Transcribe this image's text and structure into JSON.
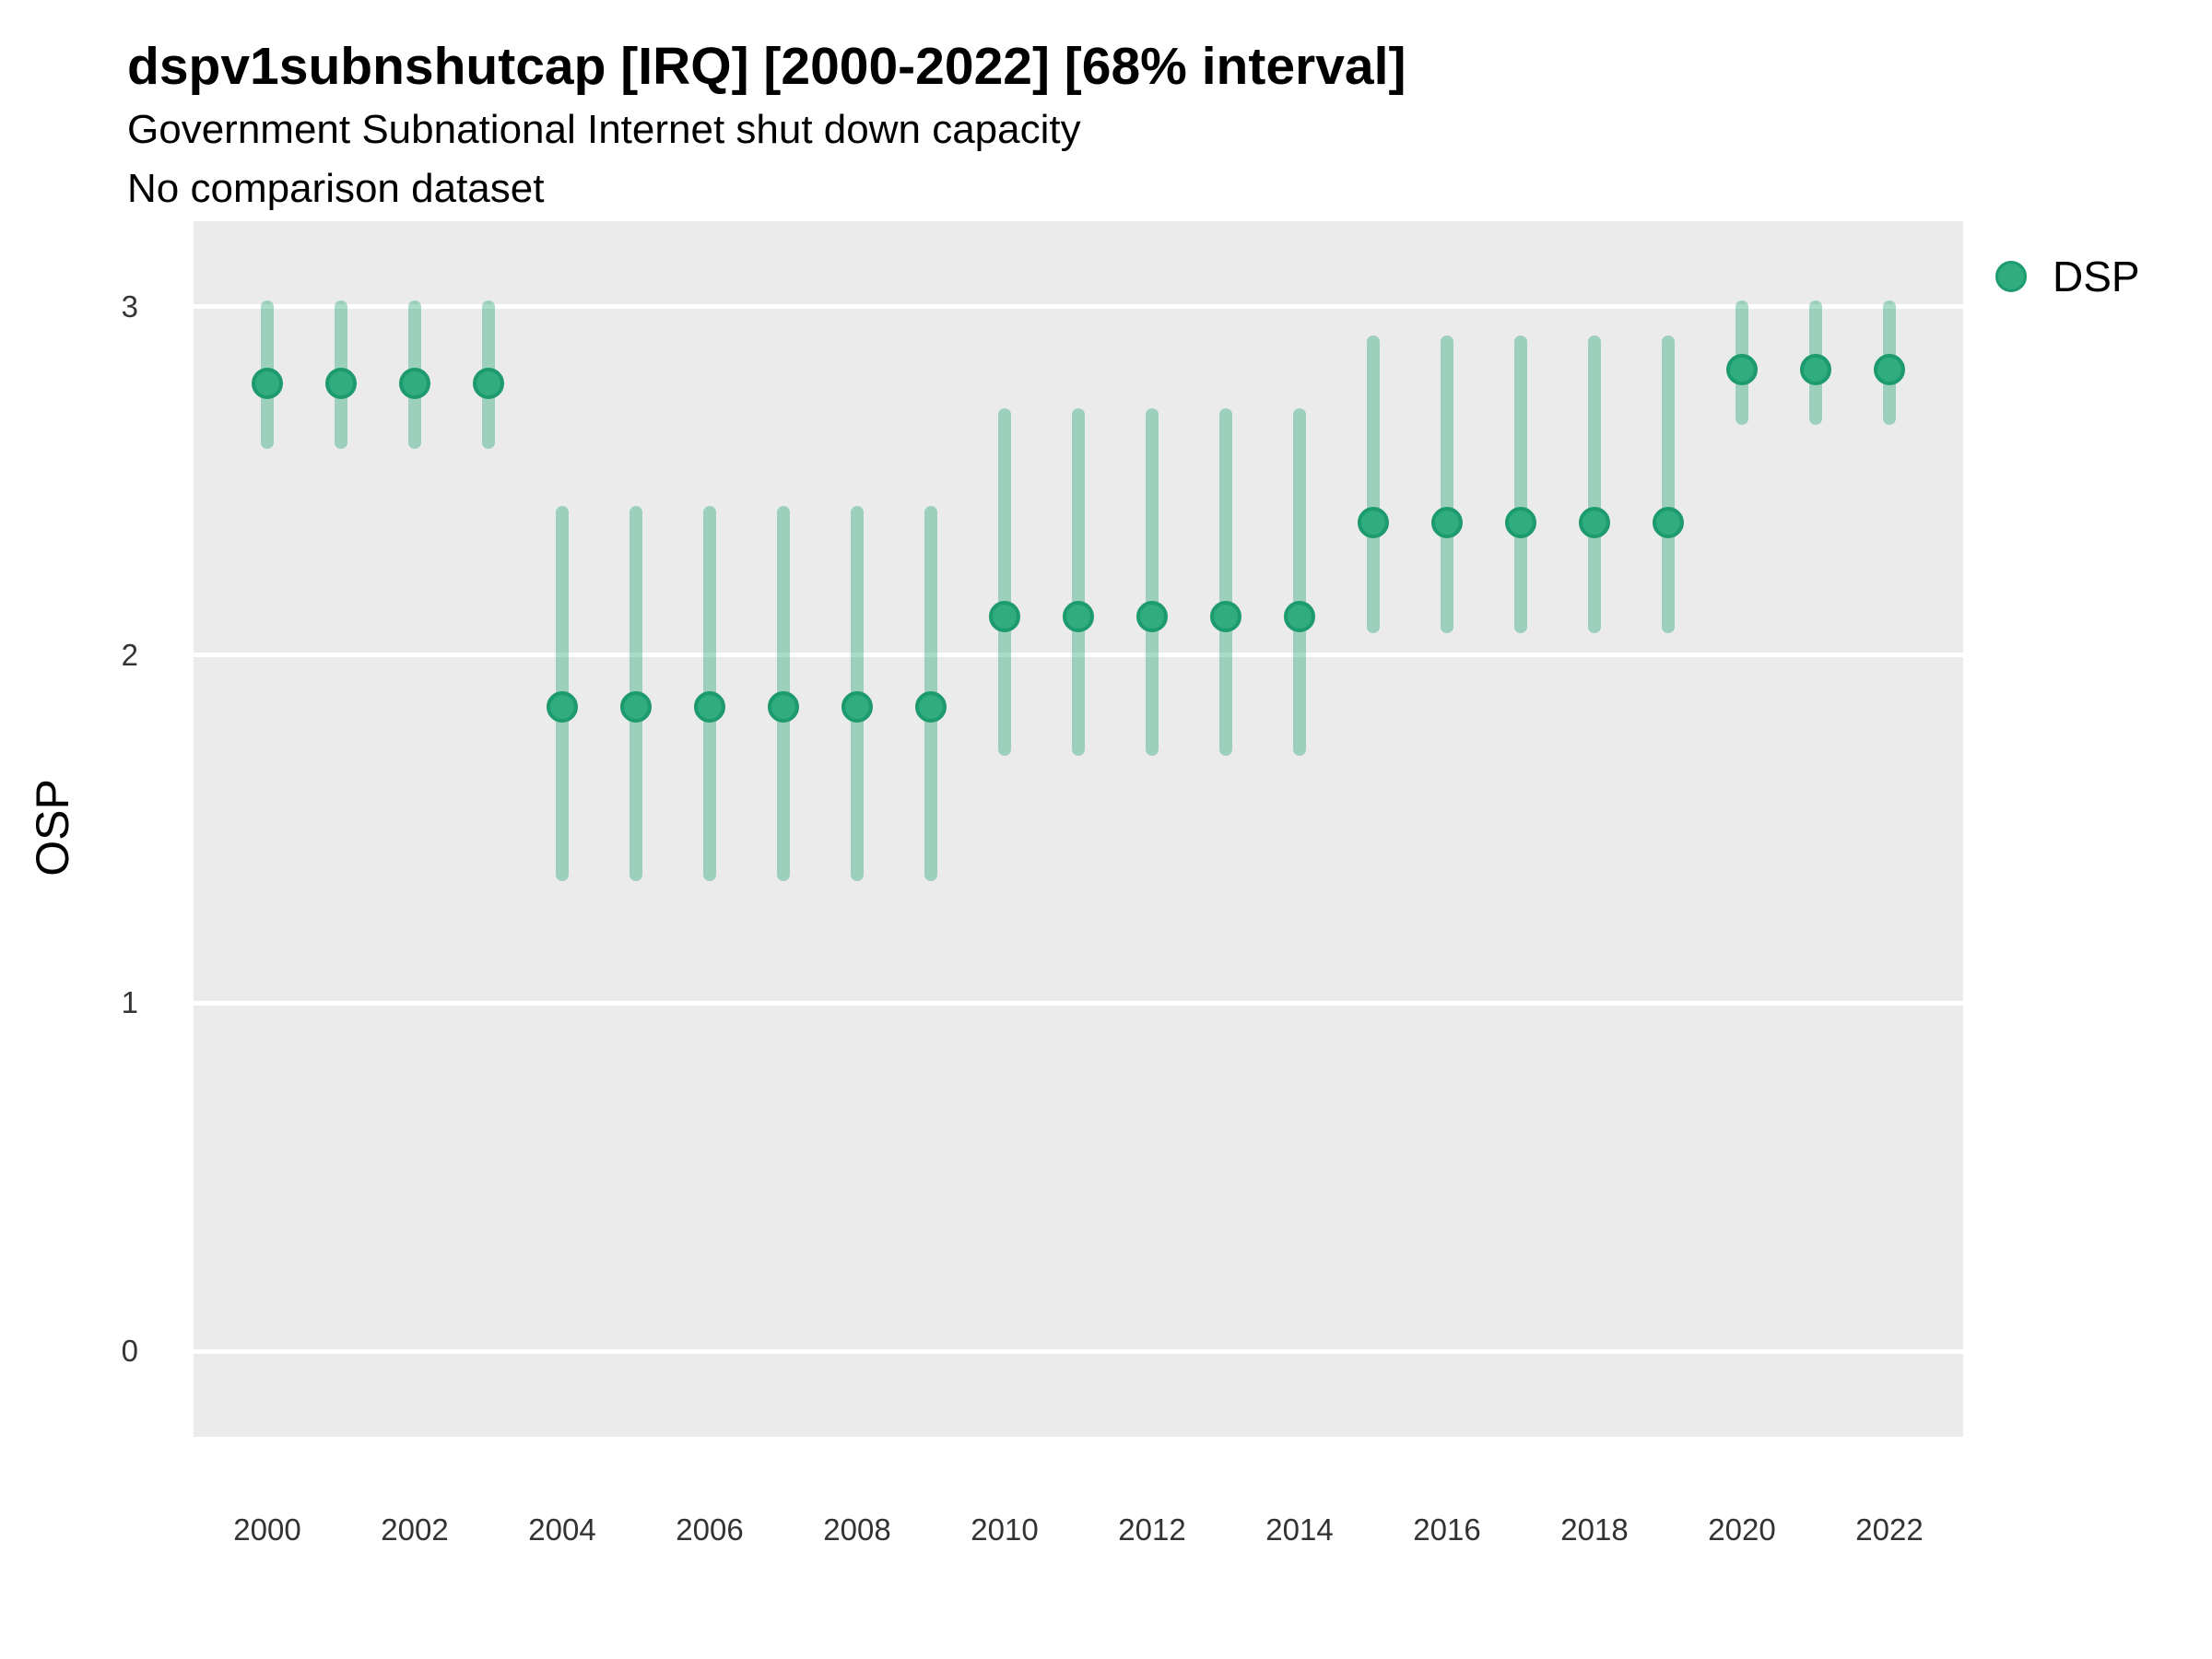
{
  "header": {
    "title": "dspv1subnshutcap [IRQ] [2000-2022] [68% interval]",
    "subtitle1": "Government Subnational Internet shut down capacity",
    "subtitle2": "No comparison dataset"
  },
  "legend": {
    "label": "DSP",
    "position": "right-top"
  },
  "axes": {
    "y_title": "OSP",
    "y_ticks": [
      3,
      2,
      1,
      0
    ],
    "x_ticks": [
      2000,
      2002,
      2004,
      2006,
      2008,
      2010,
      2012,
      2014,
      2016,
      2018,
      2020,
      2022
    ]
  },
  "colors": {
    "panel_background": "#ebebeb",
    "gridline": "#ffffff",
    "point_fill": "#30ac7f",
    "point_border": "#1d9b6f",
    "interval_bar": "rgba(48,172,127,0.42)",
    "text": "#000000",
    "tick_text": "#333333"
  },
  "chart_data": {
    "type": "pointrange",
    "title": "dspv1subnshutcap [IRQ] [2000-2022] [68% interval]",
    "subtitle": "Government Subnational Internet shut down capacity",
    "note": "No comparison dataset",
    "xlabel": "",
    "ylabel": "OSP",
    "interval": "68%",
    "x_range": [
      1999,
      2023
    ],
    "y_range": [
      -0.25,
      3.25
    ],
    "grid": "horizontal-white-on-grey",
    "legend_position": "right-top",
    "series": [
      {
        "name": "DSP",
        "points": [
          {
            "year": 2000,
            "est": 2.78,
            "lo": 2.61,
            "hi": 3.0
          },
          {
            "year": 2001,
            "est": 2.78,
            "lo": 2.61,
            "hi": 3.0
          },
          {
            "year": 2002,
            "est": 2.78,
            "lo": 2.61,
            "hi": 3.0
          },
          {
            "year": 2003,
            "est": 2.78,
            "lo": 2.61,
            "hi": 3.0
          },
          {
            "year": 2004,
            "est": 1.85,
            "lo": 1.37,
            "hi": 2.41
          },
          {
            "year": 2005,
            "est": 1.85,
            "lo": 1.37,
            "hi": 2.41
          },
          {
            "year": 2006,
            "est": 1.85,
            "lo": 1.37,
            "hi": 2.41
          },
          {
            "year": 2007,
            "est": 1.85,
            "lo": 1.37,
            "hi": 2.41
          },
          {
            "year": 2008,
            "est": 1.85,
            "lo": 1.37,
            "hi": 2.41
          },
          {
            "year": 2009,
            "est": 1.85,
            "lo": 1.37,
            "hi": 2.41
          },
          {
            "year": 2010,
            "est": 2.11,
            "lo": 1.73,
            "hi": 2.69
          },
          {
            "year": 2011,
            "est": 2.11,
            "lo": 1.73,
            "hi": 2.69
          },
          {
            "year": 2012,
            "est": 2.11,
            "lo": 1.73,
            "hi": 2.69
          },
          {
            "year": 2013,
            "est": 2.11,
            "lo": 1.73,
            "hi": 2.69
          },
          {
            "year": 2014,
            "est": 2.11,
            "lo": 1.73,
            "hi": 2.69
          },
          {
            "year": 2015,
            "est": 2.38,
            "lo": 2.08,
            "hi": 2.9
          },
          {
            "year": 2016,
            "est": 2.38,
            "lo": 2.08,
            "hi": 2.9
          },
          {
            "year": 2017,
            "est": 2.38,
            "lo": 2.08,
            "hi": 2.9
          },
          {
            "year": 2018,
            "est": 2.38,
            "lo": 2.08,
            "hi": 2.9
          },
          {
            "year": 2019,
            "est": 2.38,
            "lo": 2.08,
            "hi": 2.9
          },
          {
            "year": 2020,
            "est": 2.82,
            "lo": 2.68,
            "hi": 3.0
          },
          {
            "year": 2021,
            "est": 2.82,
            "lo": 2.68,
            "hi": 3.0
          },
          {
            "year": 2022,
            "est": 2.82,
            "lo": 2.68,
            "hi": 3.0
          }
        ]
      }
    ]
  }
}
